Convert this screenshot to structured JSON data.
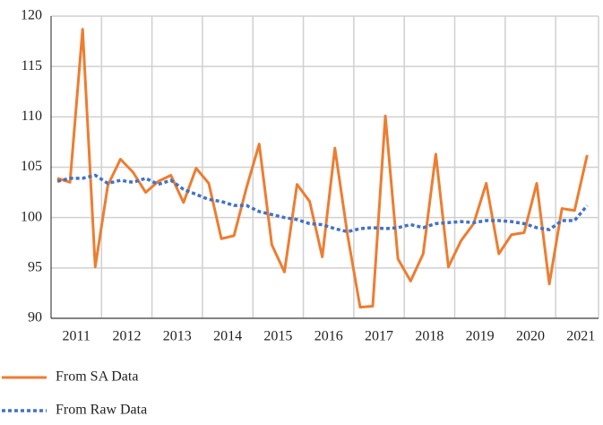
{
  "chart_data": {
    "type": "line",
    "x": [
      2011.125,
      2011.375,
      2011.625,
      2011.875,
      2012.125,
      2012.375,
      2012.625,
      2012.875,
      2013.125,
      2013.375,
      2013.625,
      2013.875,
      2014.125,
      2014.375,
      2014.625,
      2014.875,
      2015.125,
      2015.375,
      2015.625,
      2015.875,
      2016.125,
      2016.375,
      2016.625,
      2016.875,
      2017.125,
      2017.375,
      2017.625,
      2017.875,
      2018.125,
      2018.375,
      2018.625,
      2018.875,
      2019.125,
      2019.375,
      2019.625,
      2019.875,
      2020.125,
      2020.375,
      2020.625,
      2020.875,
      2021.125,
      2021.375,
      2021.625
    ],
    "series": [
      {
        "name": "From SA Data",
        "color": "#ed7d31",
        "dash": false,
        "values": [
          103.9,
          103.5,
          118.7,
          95.1,
          103.2,
          105.8,
          104.5,
          102.5,
          103.6,
          104.2,
          101.5,
          104.9,
          103.4,
          97.9,
          98.2,
          103.0,
          107.3,
          97.3,
          94.6,
          103.3,
          101.6,
          96.1,
          106.9,
          98.3,
          91.1,
          91.2,
          110.1,
          95.9,
          93.7,
          96.4,
          106.3,
          95.1,
          97.7,
          99.4,
          103.4,
          96.4,
          98.3,
          98.5,
          103.4,
          93.4,
          100.9,
          100.7,
          106.2
        ]
      },
      {
        "name": "From Raw Data",
        "color": "#4472c4",
        "dash": true,
        "values": [
          103.6,
          103.9,
          103.9,
          104.2,
          103.4,
          103.7,
          103.5,
          103.9,
          103.3,
          103.7,
          102.8,
          102.3,
          101.8,
          101.6,
          101.2,
          101.2,
          100.6,
          100.3,
          100.0,
          99.8,
          99.4,
          99.3,
          98.9,
          98.6,
          98.9,
          99.0,
          98.9,
          99.0,
          99.3,
          99.0,
          99.4,
          99.5,
          99.6,
          99.5,
          99.7,
          99.7,
          99.6,
          99.4,
          99.0,
          98.8,
          99.7,
          99.7,
          101.2
        ]
      }
    ],
    "xlim": [
      2011,
      2021.85
    ],
    "xticks": [
      {
        "value": 2011.5,
        "label": "2011"
      },
      {
        "value": 2012.5,
        "label": "2012"
      },
      {
        "value": 2013.5,
        "label": "2013"
      },
      {
        "value": 2014.5,
        "label": "2014"
      },
      {
        "value": 2015.5,
        "label": "2015"
      },
      {
        "value": 2016.5,
        "label": "2016"
      },
      {
        "value": 2017.5,
        "label": "2017"
      },
      {
        "value": 2018.5,
        "label": "2018"
      },
      {
        "value": 2019.5,
        "label": "2019"
      },
      {
        "value": 2020.5,
        "label": "2020"
      },
      {
        "value": 2021.5,
        "label": "2021"
      }
    ],
    "ylim": [
      90,
      120
    ],
    "yticks": [
      90,
      95,
      100,
      105,
      110,
      115,
      120
    ],
    "grid": true
  }
}
